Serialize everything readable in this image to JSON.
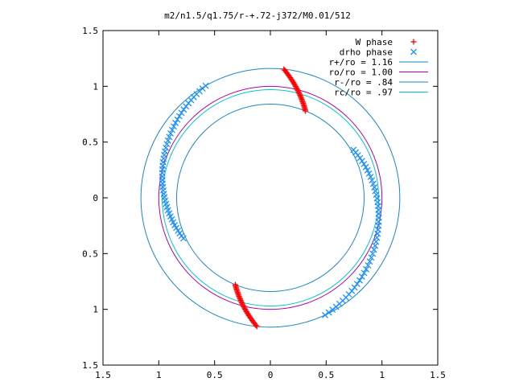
{
  "chart_data": {
    "type": "scatter",
    "title": "m2/n1.5/q1.75/r-+.72-j372/M0.01/512",
    "xlabel": "",
    "ylabel": "",
    "xlim": [
      -1.5,
      1.5
    ],
    "ylim": [
      -1.5,
      1.5
    ],
    "x_tick_values": [
      -1.5,
      -1,
      -0.5,
      0,
      0.5,
      1,
      1.5
    ],
    "x_tick_labels": [
      "1.5",
      "1",
      "0.5",
      "0",
      "0.5",
      "1",
      "1.5"
    ],
    "y_tick_values": [
      1.5,
      1,
      0.5,
      0,
      -0.5,
      -1,
      -1.5
    ],
    "y_tick_labels": [
      "1.5",
      "1",
      "0.5",
      "0",
      "0.5",
      "1",
      "1.5"
    ],
    "grid": false,
    "legend_position": "top-right",
    "series": [
      {
        "name": "W phase",
        "kind": "points",
        "marker": "plus",
        "color": "#ff0000",
        "arcs": [
          {
            "r_start": 1.16,
            "r_end": 0.84,
            "theta_start_deg": 84,
            "theta_end_deg": 68,
            "n": 34
          },
          {
            "r_start": 0.84,
            "r_end": 1.16,
            "theta_start_deg": 248,
            "theta_end_deg": 264,
            "n": 34
          }
        ]
      },
      {
        "name": "drho phase",
        "kind": "points",
        "marker": "cross",
        "color": "#1e90ff",
        "arcs": [
          {
            "r_start": 0.86,
            "r_end": 1.16,
            "theta_start_deg": 30,
            "theta_end_deg": -65,
            "n": 48
          },
          {
            "r_start": 1.16,
            "r_end": 0.86,
            "theta_start_deg": 120,
            "theta_end_deg": 205,
            "n": 48
          }
        ]
      },
      {
        "name": "r+/ro = 1.16",
        "kind": "circle",
        "r": 1.16,
        "color": "#1a86c8"
      },
      {
        "name": "ro/ro = 1.00",
        "kind": "circle",
        "r": 1.0,
        "color": "#b000b0"
      },
      {
        "name": "r-/ro = .84",
        "kind": "circle",
        "r": 0.84,
        "color": "#1a86c8"
      },
      {
        "name": "rc/ro = .97",
        "kind": "circle",
        "r": 0.97,
        "color": "#00c8c8"
      }
    ]
  }
}
